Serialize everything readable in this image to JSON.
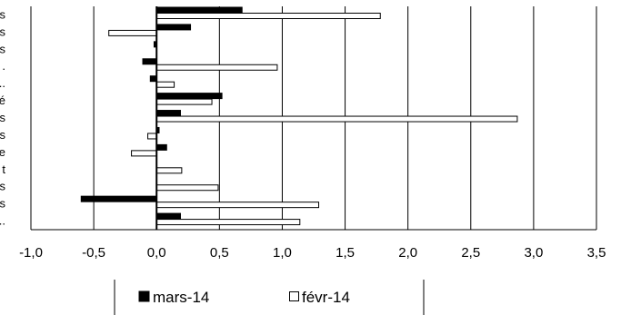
{
  "chart_data": {
    "type": "bar",
    "orientation": "horizontal",
    "categories": [
      "s",
      "s",
      "s",
      ".",
      "t...",
      "é",
      "s",
      "s",
      "e",
      "t",
      "s",
      "s",
      "..."
    ],
    "series": [
      {
        "name": "mars-14",
        "color": "#000000",
        "values": [
          0.68,
          0.27,
          -0.02,
          -0.11,
          -0.05,
          0.52,
          0.19,
          0.02,
          0.08,
          0.0,
          0.0,
          -0.6,
          0.19
        ]
      },
      {
        "name": "févr-14",
        "color": "#ffffff",
        "values": [
          1.78,
          -0.38,
          0.0,
          0.96,
          0.14,
          0.44,
          2.87,
          -0.07,
          -0.2,
          0.2,
          0.49,
          1.29,
          1.14
        ]
      }
    ],
    "xlim": [
      -1.0,
      3.5
    ],
    "xticks": [
      -1.0,
      -0.5,
      0.0,
      0.5,
      1.0,
      1.5,
      2.0,
      2.5,
      3.0,
      3.5
    ],
    "xtick_labels": [
      "-1,0",
      "-0,5",
      "0,0",
      "0,5",
      "1,0",
      "1,5",
      "2,0",
      "2,5",
      "3,0",
      "3,5"
    ],
    "grid": true,
    "legend_position": "bottom",
    "title": "",
    "xlabel": "",
    "ylabel": ""
  },
  "legend": {
    "items": [
      {
        "label": "mars-14",
        "swatch": "filled"
      },
      {
        "label": "févr-14",
        "swatch": "outline"
      }
    ]
  }
}
